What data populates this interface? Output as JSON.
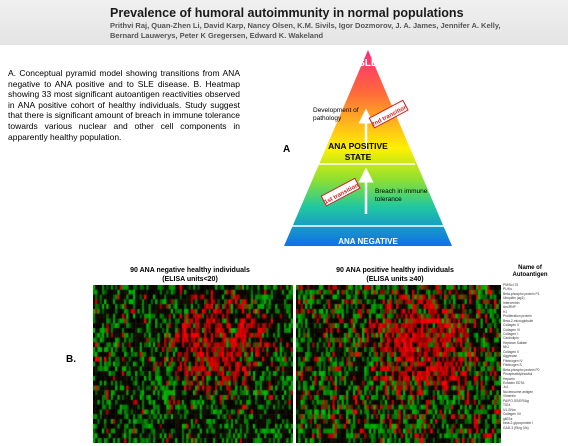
{
  "header": {
    "title": "Prevalence of humoral autoimmunity in normal populations",
    "authors": "Prithvi Raj, Quan-Zhen Li, David Karp, Nancy Olsen, K.M. Sivils, Igor Dozmorov, J. A. James, Jennifer A. Kelly, Bernard Lauwerys, Peter K Gregersen, Edward K. Wakeland"
  },
  "abstract": "A. Conceptual pyramid model showing transitions from ANA negative to ANA positive and to SLE disease. B. Heatmap showing 33 most significant autoantigen reactivities observed in ANA positive cohort of healthy individuals. Study suggest that there is significant amount of breach in immune tolerance towards various nuclear and other cell components in apparently healthy population.",
  "panel_a": {
    "label": "A",
    "top": "SLE",
    "middle": "ANA POSITIVE STATE",
    "middle_line1": "ANA POSITIVE",
    "middle_line2": "STATE",
    "bottom": "ANA NEGATIVE",
    "development_line1": "Development of",
    "development_line2": "pathology",
    "breach_line1": "Breach in immune",
    "breach_line2": "tolerance",
    "first_transition": "1st transition",
    "second_transition": "2nd transition"
  },
  "panel_b": {
    "label": "B.",
    "neg_title_line1": "90 ANA negative healthy individuals",
    "neg_title_line2": "(ELISA units<20)",
    "pos_title_line1": "90 ANA positive healthy individuals",
    "pos_title_line2": "(ELISA units ≥40)",
    "autoantigen_header_line1": "Name of",
    "autoantigen_header_line2": "Autoantigen",
    "autoantigens": [
      "PM/Scl-75",
      "PL/Ku",
      "Beta-phospho protein P1",
      "Ubiquitin (ag1)",
      "Intercentrin",
      "Ars/RNP",
      "H1",
      "Proliferation protein",
      "Beta-2-microglobulin",
      "Collagen V",
      "Collagen VI",
      "Collagen I",
      "Cardiolipin",
      "Heparan Sulfate",
      "NKJ",
      "Collagen II",
      "Aggrecan",
      "Fibrinogen IV",
      "Fibrinogen S",
      "Beta-phospho protein P0",
      "Phosphatidylinositol",
      "Heparin",
      "Entactin EDTA",
      "Jo1",
      "Nucleosome antigen",
      "Vimentin",
      "PA/PO-SS/ER/Ag",
      "TIG4",
      "U1-SNm",
      "Collagen VII",
      "gliSSs",
      "beta-2-glycoprotein I",
      "GAD-3 (Ring IVs)"
    ],
    "colors": {
      "negative_dominant": "#00b000",
      "positive_dominant": "#ff0000",
      "neutral": "#000000"
    }
  }
}
